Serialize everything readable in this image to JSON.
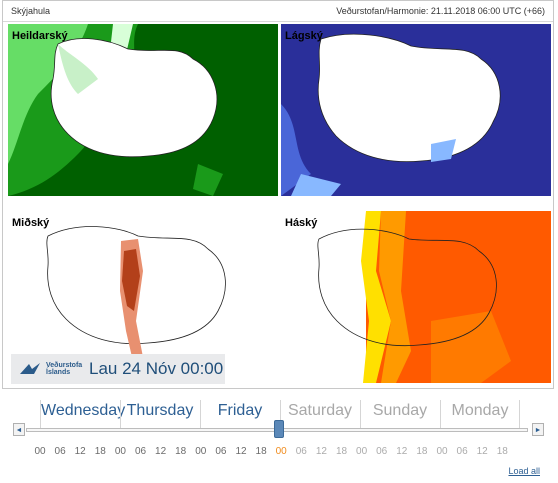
{
  "header": {
    "title": "Skýjahula",
    "source": "Veðurstofan/Harmonie: 21.11.2018 06:00 UTC (+66)"
  },
  "panels": [
    {
      "label": "Heildarský",
      "colors": {
        "bg": "#006000",
        "mid": "#1a9a1a",
        "light": "#66dd66"
      }
    },
    {
      "label": "Lágský",
      "colors": {
        "bg": "#2a2f9a",
        "mid": "#4a66d8",
        "light": "#88b8ff"
      }
    },
    {
      "label": "Miðský",
      "colors": {
        "bg": "#ffffff",
        "mid": "#b3401a",
        "light": "#e89070"
      }
    },
    {
      "label": "Háský",
      "colors": {
        "bg": "#ff5a00",
        "mid": "#ff7a00",
        "light": "#ffe000"
      }
    }
  ],
  "logo": {
    "line1": "Veðurstofa",
    "line2": "Íslands"
  },
  "current_time": "Lau 24 Nóv 00:00",
  "days": [
    {
      "label": "Wednesday",
      "available": true
    },
    {
      "label": "Thursday",
      "available": true
    },
    {
      "label": "Friday",
      "available": true
    },
    {
      "label": "Saturday",
      "available": false
    },
    {
      "label": "Sunday",
      "available": false
    },
    {
      "label": "Monday",
      "available": false
    }
  ],
  "hours": [
    "00",
    "06",
    "12",
    "18",
    "00",
    "06",
    "12",
    "18",
    "00",
    "06",
    "12",
    "18",
    "00",
    "06",
    "12",
    "18",
    "00",
    "06",
    "12",
    "18",
    "00",
    "06",
    "12",
    "18"
  ],
  "current_hour_index": 12,
  "slider": {
    "left": "◄",
    "right": "►"
  },
  "load_all": "Load all"
}
